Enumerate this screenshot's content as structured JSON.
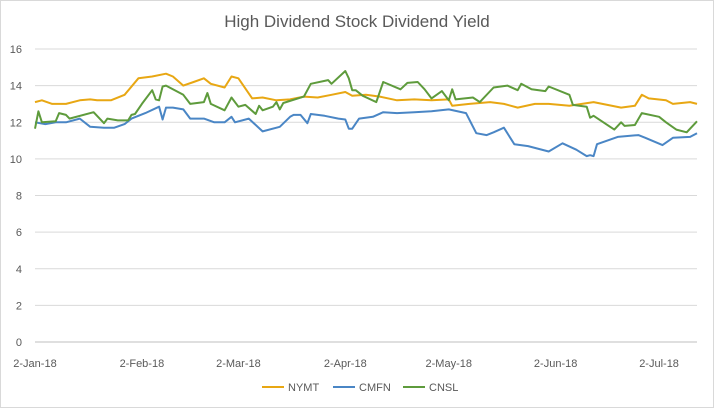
{
  "chart_data": {
    "type": "line",
    "title": "High Dividend Stock Dividend Yield",
    "xlabel": "",
    "ylabel": "",
    "x_unit": "days since 2-Jan-18",
    "xlim": [
      0,
      192
    ],
    "ylim": [
      0,
      16
    ],
    "yticks": [
      0,
      2,
      4,
      6,
      8,
      10,
      12,
      14,
      16
    ],
    "xticks": [
      {
        "day": 0,
        "label": "2-Jan-18"
      },
      {
        "day": 31,
        "label": "2-Feb-18"
      },
      {
        "day": 59,
        "label": "2-Mar-18"
      },
      {
        "day": 90,
        "label": "2-Apr-18"
      },
      {
        "day": 120,
        "label": "2-May-18"
      },
      {
        "day": 151,
        "label": "2-Jun-18"
      },
      {
        "day": 181,
        "label": "2-Jul-18"
      }
    ],
    "grid": true,
    "legend_position": "bottom",
    "series": [
      {
        "name": "NYMT",
        "color": "#E8A713",
        "x": [
          0,
          2,
          5,
          9,
          13,
          16,
          18,
          22,
          26,
          30,
          34,
          38,
          40,
          43,
          46,
          49,
          51,
          55,
          57,
          59,
          63,
          66,
          70,
          74,
          78,
          82,
          86,
          90,
          92,
          96,
          100,
          105,
          110,
          115,
          120,
          121,
          126,
          132,
          136,
          140,
          145,
          149,
          155,
          162,
          166,
          170,
          174,
          176,
          178,
          183,
          185,
          190,
          192
        ],
        "y": [
          13.1,
          13.2,
          13.0,
          13.0,
          13.2,
          13.25,
          13.2,
          13.2,
          13.5,
          14.4,
          14.5,
          14.65,
          14.5,
          14.0,
          14.2,
          14.4,
          14.1,
          13.9,
          14.5,
          14.4,
          13.3,
          13.35,
          13.2,
          13.25,
          13.4,
          13.35,
          13.5,
          13.65,
          13.45,
          13.5,
          13.4,
          13.2,
          13.25,
          13.2,
          13.25,
          12.9,
          13.0,
          13.1,
          13.0,
          12.8,
          13.0,
          13.0,
          12.9,
          13.1,
          12.95,
          12.8,
          12.9,
          13.5,
          13.3,
          13.2,
          13.0,
          13.1,
          13.0
        ]
      },
      {
        "name": "CMFN",
        "color": "#4A86C5",
        "x": [
          0,
          3,
          6,
          9,
          13,
          16,
          20,
          23,
          26,
          28,
          32,
          36,
          37,
          38,
          40,
          43,
          45,
          49,
          52,
          55,
          57,
          58,
          62,
          66,
          71,
          74,
          75,
          77,
          79,
          80,
          84,
          88,
          90,
          91,
          92,
          94,
          98,
          101,
          105,
          110,
          115,
          120,
          125,
          128,
          131,
          133,
          136,
          139,
          143,
          149,
          153,
          157,
          160,
          161,
          162,
          163,
          169,
          175,
          177,
          182,
          185,
          190,
          192
        ],
        "y": [
          12.0,
          11.9,
          12.0,
          12.0,
          12.2,
          11.75,
          11.7,
          11.7,
          11.9,
          12.2,
          12.5,
          12.85,
          12.15,
          12.8,
          12.8,
          12.7,
          12.2,
          12.2,
          12.0,
          12.0,
          12.3,
          12.0,
          12.2,
          11.5,
          11.75,
          12.3,
          12.4,
          12.4,
          11.95,
          12.45,
          12.35,
          12.2,
          12.15,
          11.65,
          11.65,
          12.2,
          12.3,
          12.55,
          12.5,
          12.55,
          12.6,
          12.7,
          12.5,
          11.4,
          11.3,
          11.45,
          11.7,
          10.8,
          10.7,
          10.4,
          10.85,
          10.5,
          10.15,
          10.2,
          10.15,
          10.8,
          11.2,
          11.3,
          11.15,
          10.75,
          11.15,
          11.2,
          11.4
        ]
      },
      {
        "name": "CNSL",
        "color": "#5E9B3C",
        "x": [
          0,
          1,
          2,
          6,
          7,
          9,
          10,
          17,
          20,
          21,
          24,
          27,
          28,
          29,
          31,
          34,
          35,
          36,
          37,
          38,
          43,
          45,
          49,
          50,
          51,
          55,
          57,
          59,
          61,
          64,
          65,
          66,
          69,
          70,
          71,
          72,
          78,
          80,
          85,
          86,
          90,
          91,
          92,
          93,
          95,
          99,
          101,
          106,
          108,
          111,
          113,
          115,
          118,
          120,
          121,
          122,
          127,
          129,
          133,
          137,
          140,
          141,
          144,
          148,
          149,
          155,
          156,
          160,
          161,
          162,
          168,
          170,
          171,
          174,
          176,
          181,
          183,
          186,
          189,
          192
        ],
        "y": [
          11.65,
          12.6,
          12.0,
          12.05,
          12.5,
          12.4,
          12.2,
          12.55,
          11.95,
          12.2,
          12.1,
          12.1,
          12.4,
          12.45,
          13.0,
          13.75,
          13.25,
          13.2,
          13.95,
          14.0,
          13.5,
          13.0,
          13.1,
          13.6,
          13.0,
          12.65,
          13.35,
          12.85,
          12.95,
          12.45,
          12.9,
          12.65,
          12.85,
          13.1,
          12.7,
          13.05,
          13.4,
          14.1,
          14.3,
          14.1,
          14.8,
          14.4,
          13.75,
          13.75,
          13.45,
          13.1,
          14.2,
          13.8,
          14.15,
          14.2,
          13.8,
          13.3,
          13.7,
          13.2,
          13.8,
          13.25,
          13.35,
          13.1,
          13.9,
          14.0,
          13.75,
          14.1,
          13.8,
          13.7,
          13.95,
          13.5,
          12.95,
          12.85,
          12.25,
          12.35,
          11.6,
          12.0,
          11.8,
          11.85,
          12.5,
          12.3,
          12.0,
          11.6,
          11.45,
          12.05
        ]
      }
    ]
  }
}
